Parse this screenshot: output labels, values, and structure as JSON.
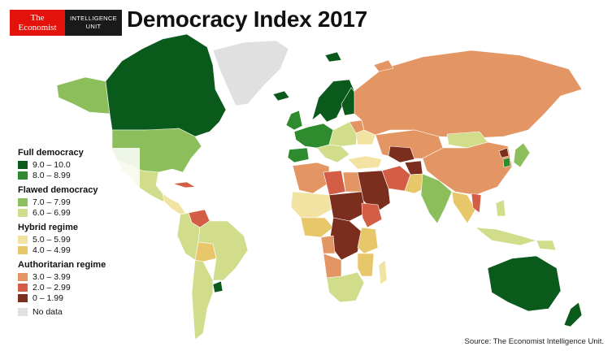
{
  "header": {
    "logo_line1": "The",
    "logo_line2": "Economist",
    "unit_line1": "INTELLIGENCE",
    "unit_line2": "UNIT",
    "title": "Democracy Index 2017"
  },
  "colors": {
    "full_9_10": "#0a5a1c",
    "full_8_899": "#2e8b2e",
    "flawed_7_799": "#8cbf5c",
    "flawed_6_699": "#d1dd8a",
    "hybrid_5_599": "#f2e3a3",
    "hybrid_4_499": "#e8c66a",
    "auth_3_399": "#e39563",
    "auth_2_299": "#d35e45",
    "auth_0_199": "#7b2d1e",
    "no_data": "#e0e0e0"
  },
  "legend": {
    "full_title": "Full democracy",
    "full_a": "9.0 – 10.0",
    "full_b": "8.0 – 8.99",
    "flawed_title": "Flawed democracy",
    "flawed_a": "7.0 – 7.99",
    "flawed_b": "6.0 – 6.99",
    "hybrid_title": "Hybrid regime",
    "hybrid_a": "5.0 – 5.99",
    "hybrid_b": "4.0 – 4.99",
    "auth_title": "Authoritarian regime",
    "auth_a": "3.0 – 3.99",
    "auth_b": "2.0 – 2.99",
    "auth_c": "0 – 1.99",
    "no_data": "No data"
  },
  "source": "Source: The Economist Intelligence Unit."
}
